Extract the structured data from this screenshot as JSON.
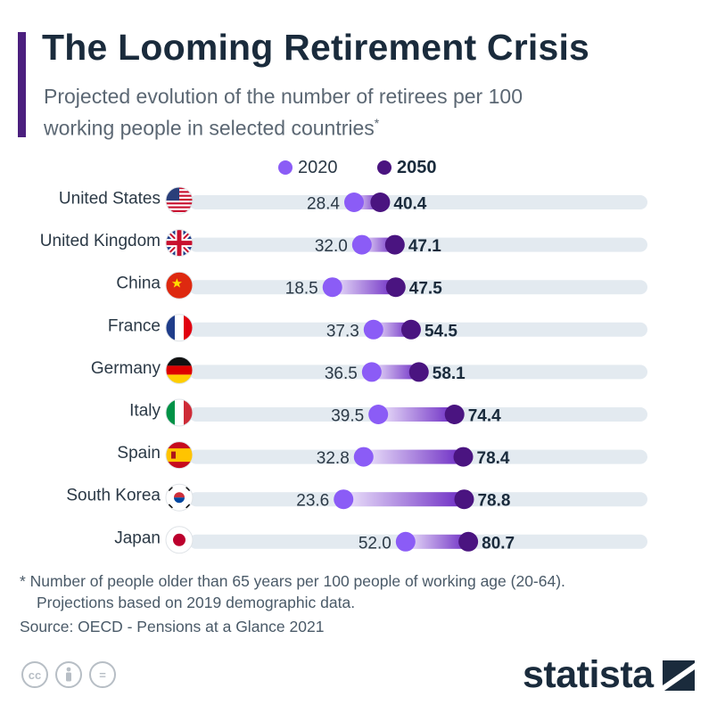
{
  "header": {
    "title": "The Looming Retirement Crisis",
    "subtitle": "Projected evolution of the number of retirees per 100 working people in selected countries",
    "subtitle_mark": "*"
  },
  "chart_data": {
    "type": "dumbbell",
    "xlim": [
      0,
      100
    ],
    "legend": {
      "placement": "top-center"
    },
    "series": [
      {
        "name": "2020",
        "color": "#8b5cf6"
      },
      {
        "name": "2050",
        "color": "#4a1480"
      }
    ],
    "categories": [
      "United States",
      "United Kingdom",
      "China",
      "France",
      "Germany",
      "Italy",
      "Spain",
      "South Korea",
      "Japan"
    ],
    "values_2020": [
      28.4,
      32.0,
      18.5,
      37.3,
      36.5,
      39.5,
      32.8,
      23.6,
      52.0
    ],
    "values_2050": [
      40.4,
      47.1,
      47.5,
      54.5,
      58.1,
      74.4,
      78.4,
      78.8,
      80.7
    ],
    "labels_2020": [
      "28.4",
      "32.0",
      "18.5",
      "37.3",
      "36.5",
      "39.5",
      "32.8",
      "23.6",
      "52.0"
    ],
    "labels_2050": [
      "40.4",
      "47.1",
      "47.5",
      "54.5",
      "58.1",
      "74.4",
      "78.4",
      "78.8",
      "80.7"
    ],
    "flags": [
      "us-flag-icon",
      "uk-flag-icon",
      "china-flag-icon",
      "france-flag-icon",
      "germany-flag-icon",
      "italy-flag-icon",
      "spain-flag-icon",
      "south-korea-flag-icon",
      "japan-flag-icon"
    ],
    "track_color": "#e3eaf0"
  },
  "footer": {
    "note_line1": "* Number of people older than 65 years per 100 people of working age (20-64).",
    "note_line2": "Projections based on 2019 demographic data.",
    "source": "Source: OECD - Pensions at a Glance 2021",
    "cc_icons": [
      "cc-icon",
      "by-icon",
      "nd-icon"
    ],
    "cc_label": "cc",
    "nd_label": "=",
    "brand": "statista"
  }
}
